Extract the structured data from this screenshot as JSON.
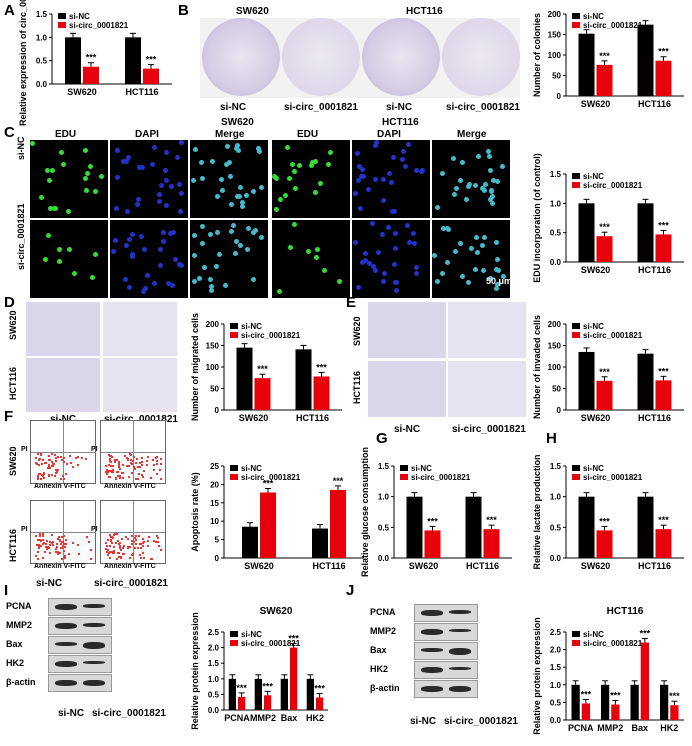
{
  "panels": {
    "A": "A",
    "B": "B",
    "C": "C",
    "D": "D",
    "E": "E",
    "F": "F",
    "G": "G",
    "H": "H",
    "I": "I",
    "J": "J"
  },
  "legend": {
    "nc": "si-NC",
    "circ": "si-circ_0001821"
  },
  "colors": {
    "nc": "#000000",
    "circ": "#e8000b"
  },
  "sig": "***",
  "cells": {
    "sw620": "SW620",
    "hct116": "HCT116"
  },
  "groups": {
    "nc": "si-NC",
    "circ": "si-circ_0001821"
  },
  "B": {
    "cell1": "SW620",
    "cell2": "HCT116",
    "l1": "si-NC",
    "l2": "si-circ_0001821",
    "l3": "si-NC",
    "l4": "si-circ_0001821"
  },
  "C": {
    "sw620": "SW620",
    "hct116": "HCT116",
    "cols": [
      "EDU",
      "DAPI",
      "Merge",
      "EDU",
      "DAPI",
      "Merge"
    ],
    "row1": "si-NC",
    "row2": "si-circ_0001821",
    "scale": "50 μm"
  },
  "D": {
    "row1": "SW620",
    "row2": "HCT116",
    "col1": "si-NC",
    "col2": "si-circ_0001821"
  },
  "E": {
    "row1": "SW620",
    "row2": "HCT116",
    "col1": "si-NC",
    "col2": "si-circ_0001821"
  },
  "F": {
    "row1": "SW620",
    "row2": "HCT116",
    "col1": "si-NC",
    "col2": "si-circ_0001821",
    "xaxis": "Annexin V-FITC",
    "yaxis": "PI"
  },
  "I": {
    "proteins": [
      "PCNA",
      "MMP2",
      "Bax",
      "HK2",
      "β-actin"
    ],
    "col1": "si-NC",
    "col2": "si-circ_0001821"
  },
  "J": {
    "proteins": [
      "PCNA",
      "MMP2",
      "Bax",
      "HK2",
      "β-actin"
    ],
    "col1": "si-NC",
    "col2": "si-circ_0001821"
  },
  "chart_data": [
    {
      "id": "A",
      "type": "bar",
      "categories": [
        "SW620",
        "HCT116"
      ],
      "series": [
        {
          "name": "si-NC",
          "values": [
            1.0,
            1.0
          ]
        },
        {
          "name": "si-circ_0001821",
          "values": [
            0.37,
            0.33
          ]
        }
      ],
      "ylabel": "Relative expression of circ_0001821",
      "ylim": [
        0,
        1.5
      ],
      "yticks": [
        0.0,
        0.5,
        1.0,
        1.5
      ]
    },
    {
      "id": "B",
      "type": "bar",
      "categories": [
        "SW620",
        "HCT116"
      ],
      "series": [
        {
          "name": "si-NC",
          "values": [
            152,
            174
          ]
        },
        {
          "name": "si-circ_0001821",
          "values": [
            76,
            86
          ]
        }
      ],
      "ylabel": "Number of colonies",
      "ylim": [
        0,
        200
      ],
      "yticks": [
        0,
        50,
        100,
        150,
        200
      ]
    },
    {
      "id": "C",
      "type": "bar",
      "categories": [
        "SW620",
        "HCT116"
      ],
      "series": [
        {
          "name": "si-NC",
          "values": [
            1.0,
            1.0
          ]
        },
        {
          "name": "si-circ_0001821",
          "values": [
            0.44,
            0.47
          ]
        }
      ],
      "ylabel": "EDU incorporation (of control)",
      "ylim": [
        0,
        1.5
      ],
      "yticks": [
        0.0,
        0.5,
        1.0,
        1.5
      ]
    },
    {
      "id": "D",
      "type": "bar",
      "categories": [
        "SW620",
        "HCT116"
      ],
      "series": [
        {
          "name": "si-NC",
          "values": [
            145,
            141
          ]
        },
        {
          "name": "si-circ_0001821",
          "values": [
            74,
            78
          ]
        }
      ],
      "ylabel": "Number of migrated cells",
      "ylim": [
        0,
        200
      ],
      "yticks": [
        0,
        50,
        100,
        150,
        200
      ]
    },
    {
      "id": "E",
      "type": "bar",
      "categories": [
        "SW620",
        "HCT116"
      ],
      "series": [
        {
          "name": "si-NC",
          "values": [
            135,
            131
          ]
        },
        {
          "name": "si-circ_0001821",
          "values": [
            68,
            69
          ]
        }
      ],
      "ylabel": "Number of invaded cells",
      "ylim": [
        0,
        200
      ],
      "yticks": [
        0,
        50,
        100,
        150,
        200
      ]
    },
    {
      "id": "F",
      "type": "bar",
      "categories": [
        "SW620",
        "HCT116"
      ],
      "series": [
        {
          "name": "si-NC",
          "values": [
            8.5,
            8.0
          ]
        },
        {
          "name": "si-circ_0001821",
          "values": [
            17.8,
            18.5
          ]
        }
      ],
      "ylabel": "Apoptosis rate (%)",
      "ylim": [
        0,
        25
      ],
      "yticks": [
        0,
        5,
        10,
        15,
        20,
        25
      ]
    },
    {
      "id": "G",
      "type": "bar",
      "categories": [
        "SW620",
        "HCT116"
      ],
      "series": [
        {
          "name": "si-NC",
          "values": [
            1.0,
            1.0
          ]
        },
        {
          "name": "si-circ_0001821",
          "values": [
            0.45,
            0.47
          ]
        }
      ],
      "ylabel": "Relative glucose consumption",
      "ylim": [
        0,
        1.5
      ],
      "yticks": [
        0.0,
        0.5,
        1.0,
        1.5
      ]
    },
    {
      "id": "H",
      "type": "bar",
      "categories": [
        "SW620",
        "HCT116"
      ],
      "series": [
        {
          "name": "si-NC",
          "values": [
            1.0,
            1.0
          ]
        },
        {
          "name": "si-circ_0001821",
          "values": [
            0.45,
            0.47
          ]
        }
      ],
      "ylabel": "Relative lactate production",
      "ylim": [
        0,
        1.5
      ],
      "yticks": [
        0.0,
        0.5,
        1.0,
        1.5
      ]
    },
    {
      "id": "I",
      "type": "bar",
      "title": "SW620",
      "categories": [
        "PCNA",
        "MMP2",
        "Bax",
        "HK2"
      ],
      "series": [
        {
          "name": "si-NC",
          "values": [
            1.0,
            1.0,
            1.0,
            1.0
          ]
        },
        {
          "name": "si-circ_0001821",
          "values": [
            0.42,
            0.47,
            2.0,
            0.4
          ]
        }
      ],
      "ylabel": "Relative protein expression",
      "ylim": [
        0,
        2.5
      ],
      "yticks": [
        0.0,
        0.5,
        1.0,
        1.5,
        2.0,
        2.5
      ]
    },
    {
      "id": "J",
      "type": "bar",
      "title": "HCT116",
      "categories": [
        "PCNA",
        "MMP2",
        "Bax",
        "HK2"
      ],
      "series": [
        {
          "name": "si-NC",
          "values": [
            1.0,
            1.0,
            1.0,
            1.0
          ]
        },
        {
          "name": "si-circ_0001821",
          "values": [
            0.47,
            0.44,
            2.2,
            0.42
          ]
        }
      ],
      "ylabel": "Relative protein expression",
      "ylim": [
        0,
        2.5
      ],
      "yticks": [
        0.0,
        0.5,
        1.0,
        1.5,
        2.0,
        2.5
      ]
    }
  ]
}
